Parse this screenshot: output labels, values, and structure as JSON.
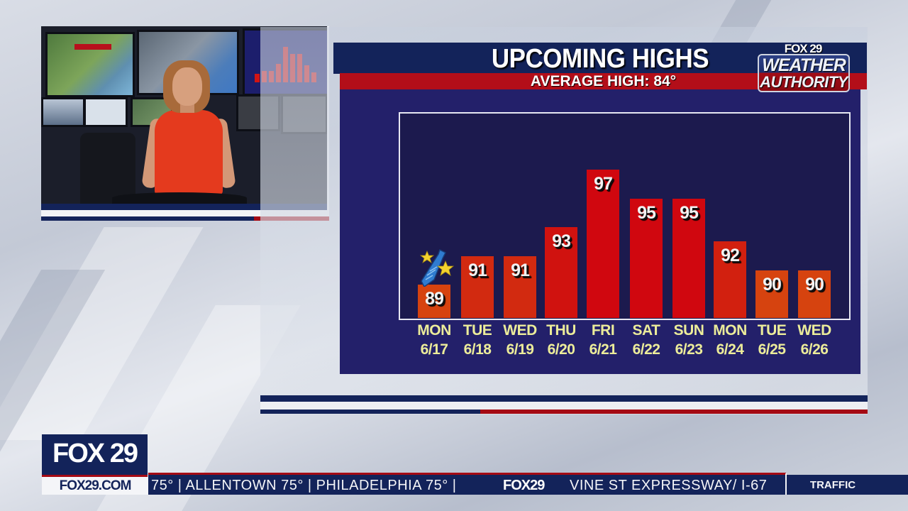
{
  "graphic": {
    "title": "UPCOMING HIGHS",
    "subtitle": "AVERAGE HIGH: 84°",
    "brand": {
      "top": "FOX 29",
      "line1": "WEATHER",
      "line2": "AUTHORITY"
    },
    "icon": "fathers-day-tie-stars-icon"
  },
  "chart_data": {
    "type": "bar",
    "title": "UPCOMING HIGHS",
    "subtitle": "AVERAGE HIGH: 84°",
    "xlabel": "",
    "ylabel": "",
    "categories": [
      "MON 6/17",
      "TUE 6/18",
      "WED 6/19",
      "THU 6/20",
      "FRI 6/21",
      "SAT 6/22",
      "SUN 6/23",
      "MON 6/24",
      "TUE 6/25",
      "WED 6/26"
    ],
    "days": [
      "MON",
      "TUE",
      "WED",
      "THU",
      "FRI",
      "SAT",
      "SUN",
      "MON",
      "TUE",
      "WED"
    ],
    "dates": [
      "6/17",
      "6/18",
      "6/19",
      "6/20",
      "6/21",
      "6/22",
      "6/23",
      "6/24",
      "6/25",
      "6/26"
    ],
    "values": [
      89,
      91,
      91,
      93,
      97,
      95,
      95,
      92,
      90,
      90
    ],
    "labels": [
      "89",
      "91",
      "91",
      "93",
      "97",
      "95",
      "95",
      "92",
      "90",
      "90"
    ],
    "bar_colors": [
      "#d6430f",
      "#d22a10",
      "#d22a10",
      "#d0120f",
      "#d0070f",
      "#d0070f",
      "#d0070f",
      "#d2200f",
      "#d6430f",
      "#d6430f"
    ],
    "grid": false,
    "legend": null,
    "ylim": [
      85,
      98
    ]
  },
  "ticker": {
    "logo_top": "FOX 29",
    "logo_url": "FOX29.COM",
    "text": "75°  |  ALLENTOWN  75°  |  PHILADELPHIA  75°  |",
    "inline_logo": "FOX29",
    "text2": "VINE  ST  EXPRESSWAY/  I-67",
    "section": "TRAFFIC"
  },
  "colors": {
    "navy": "#13235a",
    "panel": "#23206a",
    "plot_bg": "#1c1a4e",
    "red": "#b30e19",
    "label_yellow": "#ecec9a"
  }
}
